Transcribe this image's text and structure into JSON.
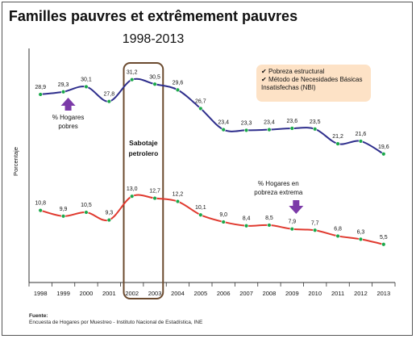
{
  "chart_data": {
    "type": "line",
    "title": "Familles pauvres et extrêmement pauvres",
    "subtitle": "1998-2013",
    "ylabel": "Porcentaje",
    "xlabel": "",
    "x": [
      "1998",
      "1999",
      "2000",
      "2001",
      "2002",
      "2003",
      "2004",
      "2005",
      "2006",
      "2007",
      "2008",
      "2009",
      "2010",
      "2011",
      "2012",
      "2013"
    ],
    "ylim": [
      0,
      35
    ],
    "grid": false,
    "legend_position": "top-right",
    "series": [
      {
        "values": [
          28.9,
          29.3,
          30.1,
          27.8,
          31.2,
          30.5,
          29.6,
          26.7,
          23.4,
          23.3,
          23.4,
          23.6,
          23.5,
          21.2,
          21.6,
          19.6
        ],
        "labels": [
          "28,9",
          "29,3",
          "30,1",
          "27,8",
          "31,2",
          "30,5",
          "29,6",
          "26,7",
          "23,4",
          "23,3",
          "23,4",
          "23,6",
          "23,5",
          "21,2",
          "21,6",
          "19,6"
        ],
        "color": "#2e2e8c"
      },
      {
        "values": [
          10.8,
          9.9,
          10.5,
          9.3,
          13.0,
          12.7,
          12.2,
          10.1,
          9.0,
          8.4,
          8.5,
          7.9,
          7.7,
          6.8,
          6.3,
          5.5
        ],
        "labels": [
          "10,8",
          "9,9",
          "10,5",
          "9,3",
          "13,0",
          "12,7",
          "12,2",
          "10,1",
          "9,0",
          "8,4",
          "8,5",
          "7,9",
          "7,7",
          "6,8",
          "6,3",
          "5,5"
        ],
        "color": "#e03a2f"
      }
    ],
    "marker_color": "#1aa84a",
    "legend": [
      "Pobreza estructural",
      "Método de Necesidades Básicas Insatisfechas (NBI)"
    ],
    "annotations": {
      "hogares_pobres": "% Hogares pobres",
      "hogares_extrema": "% Hogares en pobreza extrema",
      "sabotaje": "Sabotaje petrolero",
      "arrow_color": "#7b3aa8",
      "box_color": "#6b4a2e"
    },
    "source": {
      "heading": "Fuente:",
      "text": "Encuesta de Hogares por Muestreo - Instituto Nacional de Estadística, INE"
    }
  }
}
